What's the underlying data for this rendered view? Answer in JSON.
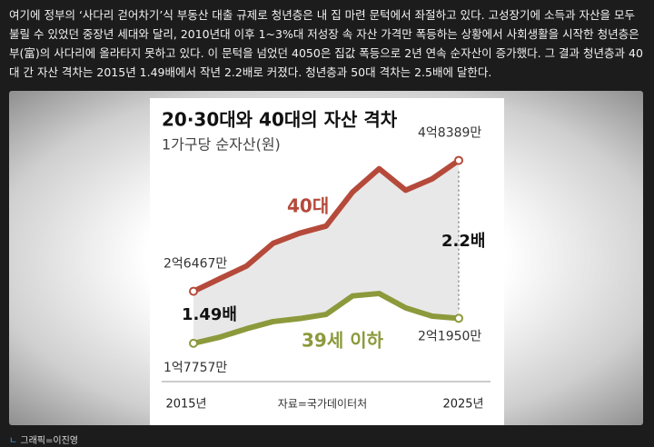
{
  "paragraph": "여기에 정부의 ‘사다리 걷어차기’식 부동산 대출 규제로 청년층은 내 집 마련 문턱에서 좌절하고 있다. 고성장기에 소득과 자산을 모두 불릴 수 있었던 중장년 세대와 달리, 2010년대 이후 1~3%대 저성장 속 자산 가격만 폭등하는 상황에서 사회생활을 시작한 청년층은 부(富)의 사다리에 올라타지 못하고 있다. 이 문턱을 넘었던 4050은 집값 폭등으로 2년 연속 순자산이 증가했다. 그 결과 청년층과 40대 간 자산 격차는 2015년 1.49배에서 작년 2.2배로 커졌다. 청년층과 50대 격차는 2.5배에 달한다.",
  "chart_data": {
    "type": "line",
    "title": "20·30대와 40대의 자산 격차",
    "subtitle": "1가구당 순자산(원)",
    "categories": [
      "2015년",
      null,
      null,
      null,
      null,
      null,
      null,
      null,
      null,
      null,
      "2025년"
    ],
    "series": [
      {
        "name": "40대",
        "color": "#b54a3b",
        "values": [
          26467,
          28600,
          30700,
          34500,
          36200,
          37400,
          43100,
          47000,
          43400,
          45300,
          48389
        ],
        "value_labels": [
          "2억6467만",
          null,
          null,
          null,
          null,
          null,
          null,
          null,
          null,
          null,
          "4억8389만"
        ]
      },
      {
        "name": "39세 이하",
        "color": "#8c9a3c",
        "values": [
          17757,
          18800,
          20200,
          21400,
          21900,
          22600,
          25700,
          26100,
          23700,
          22300,
          21950
        ],
        "value_labels": [
          "1억7757만",
          null,
          null,
          null,
          null,
          null,
          null,
          null,
          null,
          null,
          "2억1950만"
        ]
      }
    ],
    "ylim": [
      15000,
      50000
    ],
    "annotations": [
      "1.49배",
      "2.2배"
    ],
    "source": "자료=국가데이터처"
  },
  "credit": "그래픽=이진영"
}
